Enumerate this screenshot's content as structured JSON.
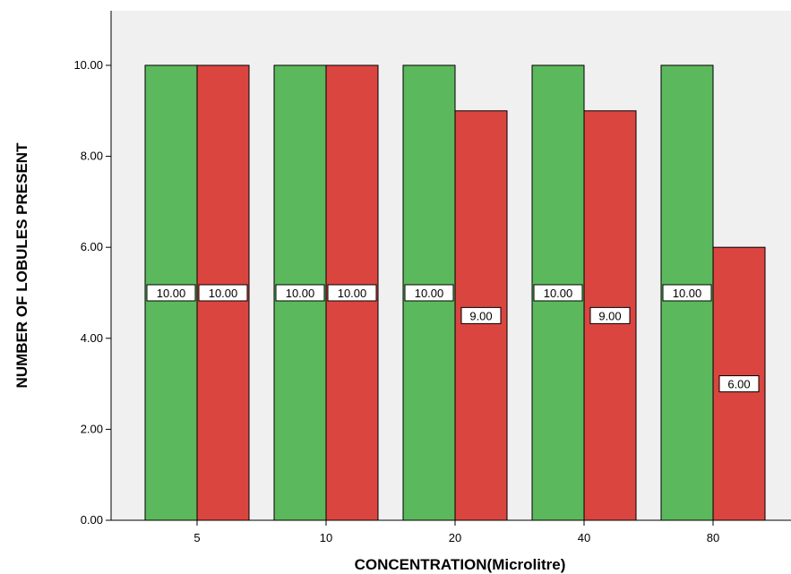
{
  "chart_data": {
    "type": "bar",
    "categories": [
      "5",
      "10",
      "20",
      "40",
      "80"
    ],
    "series": [
      {
        "color": "#5cb85c",
        "values": [
          10.0,
          10.0,
          10.0,
          10.0,
          10.0
        ],
        "labels": [
          "10.00",
          "10.00",
          "10.00",
          "10.00",
          "10.00"
        ]
      },
      {
        "color": "#db4540",
        "values": [
          10.0,
          10.0,
          9.0,
          9.0,
          6.0
        ],
        "labels": [
          "10.00",
          "10.00",
          "9.00",
          "9.00",
          "6.00"
        ]
      }
    ],
    "xlabel": "CONCENTRATION(Microlitre)",
    "ylabel": "NUMBER OF LOBULES PRESENT",
    "ylim": [
      0,
      11.2
    ],
    "yticks": [
      0,
      2,
      4,
      6,
      8,
      10
    ],
    "ytick_labels": [
      "0.00",
      "2.00",
      "4.00",
      "6.00",
      "8.00",
      "10.00"
    ],
    "grid": false,
    "legend": "none",
    "plot_background": "#f0f0f0",
    "data_label_position": "center"
  }
}
